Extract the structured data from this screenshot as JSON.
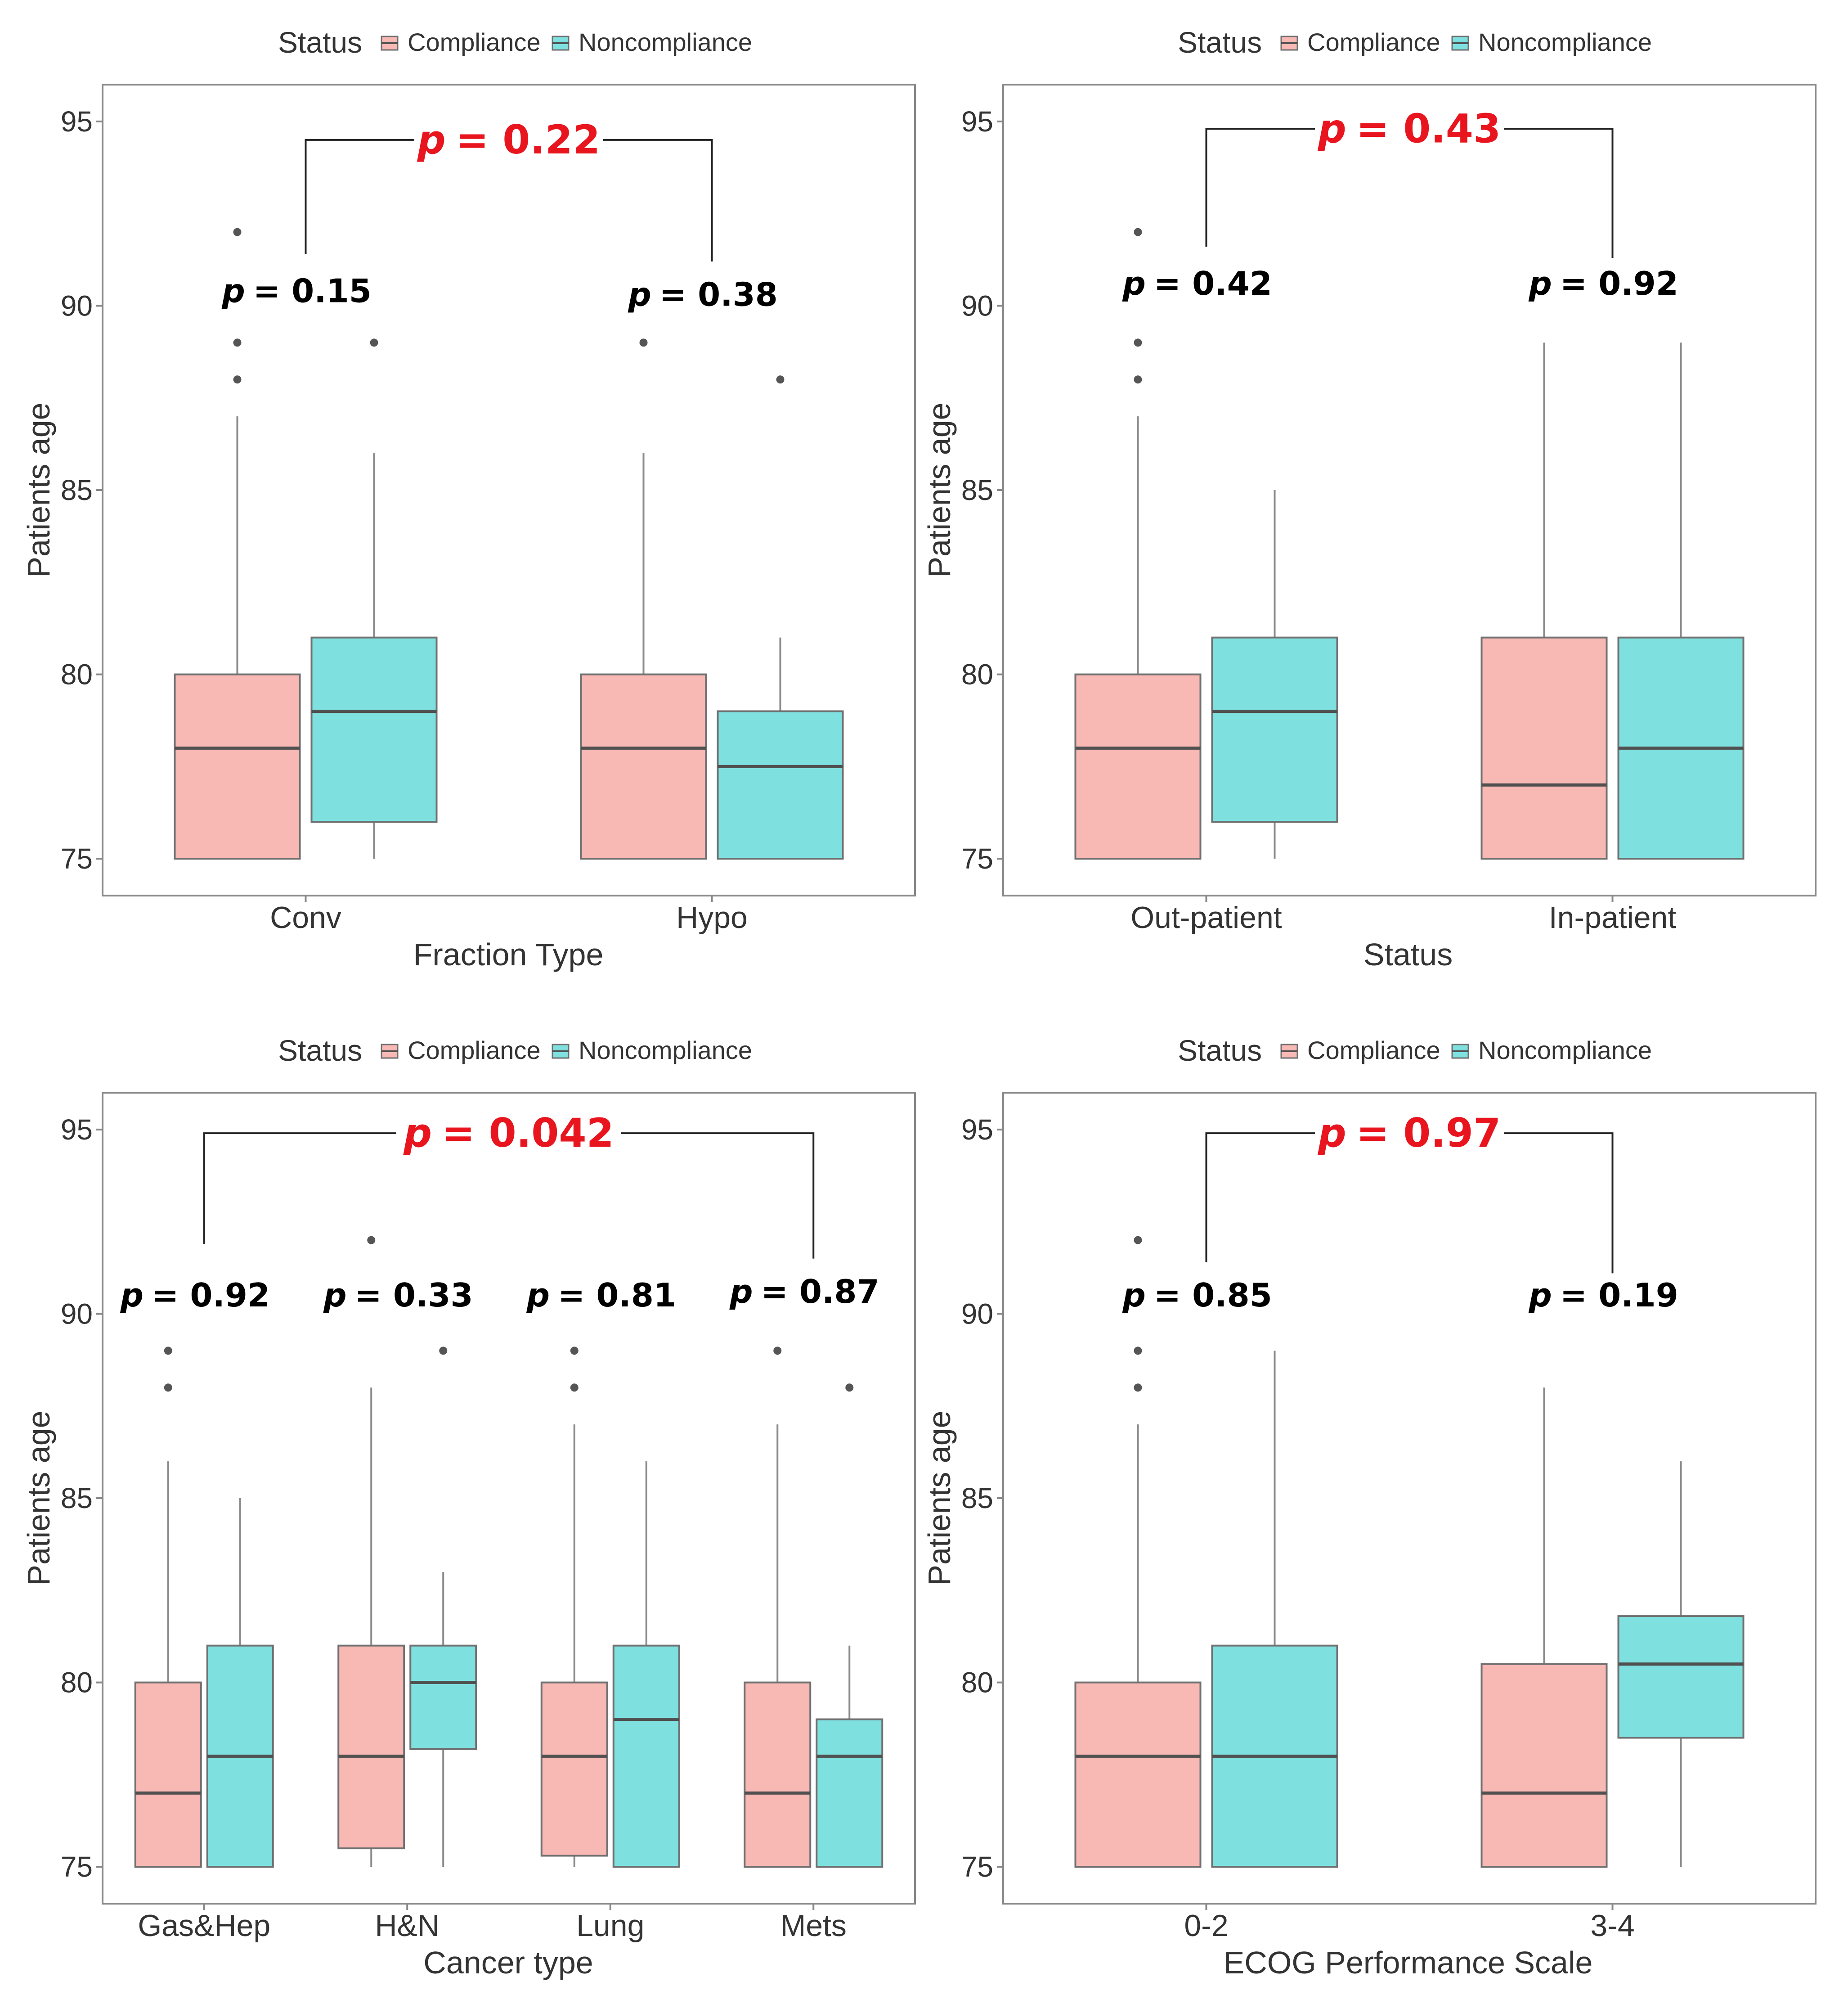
{
  "colors": {
    "compliance": "#F8B8B4",
    "noncompliance": "#7FE0E0",
    "box_stroke": "#707070",
    "median": "#505050",
    "whisker": "#8a8a8a",
    "outlier": "#555555",
    "panel_border": "#888888",
    "p_overall": "#E8141E",
    "p_group": "#000000",
    "bracket": "#222222",
    "text": "#333333"
  },
  "chart_data": [
    {
      "type": "boxplot",
      "legend": {
        "title": "Status",
        "entries": [
          "Compliance",
          "Noncompliance"
        ],
        "placement": "top"
      },
      "xlabel": "Fraction Type",
      "ylabel": "Patients age",
      "ylim": [
        74,
        96
      ],
      "yticks": [
        "75",
        "80",
        "85",
        "90",
        "95"
      ],
      "categories": [
        "Conv",
        "Hypo"
      ],
      "series": [
        {
          "name": "Compliance",
          "boxes": [
            {
              "q1": 75,
              "median": 78,
              "q3": 80,
              "whisker_low": 75,
              "whisker_high": 87,
              "outliers": [
                88,
                89,
                92
              ]
            },
            {
              "q1": 75,
              "median": 78,
              "q3": 80,
              "whisker_low": 75,
              "whisker_high": 86,
              "outliers": [
                89
              ]
            }
          ]
        },
        {
          "name": "Noncompliance",
          "boxes": [
            {
              "q1": 76,
              "median": 79,
              "q3": 81,
              "whisker_low": 75,
              "whisker_high": 86,
              "outliers": [
                89
              ]
            },
            {
              "q1": 75,
              "median": 77.5,
              "q3": 79,
              "whisker_low": 75,
              "whisker_high": 81,
              "outliers": [
                88
              ]
            }
          ]
        }
      ],
      "group_p": [
        {
          "prefix": "p",
          "text": "= 0.15",
          "y": 90.1
        },
        {
          "prefix": "p",
          "text": "= 0.38",
          "y": 90.0
        }
      ],
      "overall_p": {
        "prefix": "p",
        "text": "= 0.22",
        "from": 0,
        "to": 1,
        "bracket_y": 94.5,
        "drop_to": [
          91.4,
          91.2
        ]
      }
    },
    {
      "type": "boxplot",
      "legend": {
        "title": "Status",
        "entries": [
          "Compliance",
          "Noncompliance"
        ],
        "placement": "top"
      },
      "xlabel": "Status",
      "ylabel": "Patients age",
      "ylim": [
        74,
        96
      ],
      "yticks": [
        "75",
        "80",
        "85",
        "90",
        "95"
      ],
      "categories": [
        "Out-patient",
        "In-patient"
      ],
      "series": [
        {
          "name": "Compliance",
          "boxes": [
            {
              "q1": 75,
              "median": 78,
              "q3": 80,
              "whisker_low": 75,
              "whisker_high": 87,
              "outliers": [
                88,
                89,
                92
              ]
            },
            {
              "q1": 75,
              "median": 77,
              "q3": 81,
              "whisker_low": 75,
              "whisker_high": 89,
              "outliers": []
            }
          ]
        },
        {
          "name": "Noncompliance",
          "boxes": [
            {
              "q1": 76,
              "median": 79,
              "q3": 81,
              "whisker_low": 75,
              "whisker_high": 85,
              "outliers": []
            },
            {
              "q1": 75,
              "median": 78,
              "q3": 81,
              "whisker_low": 75,
              "whisker_high": 89,
              "outliers": []
            }
          ]
        }
      ],
      "group_p": [
        {
          "prefix": "p",
          "text": "= 0.42",
          "y": 90.3
        },
        {
          "prefix": "p",
          "text": "= 0.92",
          "y": 90.3
        }
      ],
      "overall_p": {
        "prefix": "p",
        "text": "= 0.43",
        "from": 0,
        "to": 1,
        "bracket_y": 94.8,
        "drop_to": [
          91.6,
          91.3
        ]
      }
    },
    {
      "type": "boxplot",
      "legend": {
        "title": "Status",
        "entries": [
          "Compliance",
          "Noncompliance"
        ],
        "placement": "top"
      },
      "xlabel": "Cancer type",
      "ylabel": "Patients age",
      "ylim": [
        74,
        96
      ],
      "yticks": [
        "75",
        "80",
        "85",
        "90",
        "95"
      ],
      "categories": [
        "Gas&Hep",
        "H&N",
        "Lung",
        "Mets"
      ],
      "series": [
        {
          "name": "Compliance",
          "boxes": [
            {
              "q1": 75,
              "median": 77,
              "q3": 80,
              "whisker_low": 75,
              "whisker_high": 86,
              "outliers": [
                88,
                89
              ]
            },
            {
              "q1": 75.5,
              "median": 78,
              "q3": 81,
              "whisker_low": 75,
              "whisker_high": 88,
              "outliers": [
                92
              ]
            },
            {
              "q1": 75.3,
              "median": 78,
              "q3": 80,
              "whisker_low": 75,
              "whisker_high": 87,
              "outliers": [
                88,
                89
              ]
            },
            {
              "q1": 75,
              "median": 77,
              "q3": 80,
              "whisker_low": 75,
              "whisker_high": 87,
              "outliers": [
                89
              ]
            }
          ]
        },
        {
          "name": "Noncompliance",
          "boxes": [
            {
              "q1": 75,
              "median": 78,
              "q3": 81,
              "whisker_low": 75,
              "whisker_high": 85,
              "outliers": []
            },
            {
              "q1": 78.2,
              "median": 80,
              "q3": 81,
              "whisker_low": 75,
              "whisker_high": 83,
              "outliers": [
                89
              ]
            },
            {
              "q1": 75,
              "median": 79,
              "q3": 81,
              "whisker_low": 75,
              "whisker_high": 86,
              "outliers": []
            },
            {
              "q1": 75,
              "median": 78,
              "q3": 79,
              "whisker_low": 75,
              "whisker_high": 81,
              "outliers": [
                88
              ]
            }
          ]
        }
      ],
      "group_p": [
        {
          "prefix": "p",
          "text": "= 0.92",
          "y": 90.2
        },
        {
          "prefix": "p",
          "text": "= 0.33",
          "y": 90.2
        },
        {
          "prefix": "p",
          "text": "= 0.81",
          "y": 90.2
        },
        {
          "prefix": "p",
          "text": "= 0.87",
          "y": 90.3
        }
      ],
      "overall_p": {
        "prefix": "p",
        "text": "= 0.042",
        "from": 0,
        "to": 3,
        "bracket_y": 94.9,
        "drop_to": [
          91.9,
          91.5
        ]
      }
    },
    {
      "type": "boxplot",
      "legend": {
        "title": "Status",
        "entries": [
          "Compliance",
          "Noncompliance"
        ],
        "placement": "top"
      },
      "xlabel": "ECOG Performance Scale",
      "ylabel": "Patients age",
      "ylim": [
        74,
        96
      ],
      "yticks": [
        "75",
        "80",
        "85",
        "90",
        "95"
      ],
      "categories": [
        "0-2",
        "3-4"
      ],
      "series": [
        {
          "name": "Compliance",
          "boxes": [
            {
              "q1": 75,
              "median": 78,
              "q3": 80,
              "whisker_low": 75,
              "whisker_high": 87,
              "outliers": [
                88,
                89,
                92
              ]
            },
            {
              "q1": 75,
              "median": 77,
              "q3": 80.5,
              "whisker_low": 75,
              "whisker_high": 88,
              "outliers": []
            }
          ]
        },
        {
          "name": "Noncompliance",
          "boxes": [
            {
              "q1": 75,
              "median": 78,
              "q3": 81,
              "whisker_low": 75,
              "whisker_high": 89,
              "outliers": []
            },
            {
              "q1": 78.5,
              "median": 80.5,
              "q3": 81.8,
              "whisker_low": 75,
              "whisker_high": 86,
              "outliers": []
            }
          ]
        }
      ],
      "group_p": [
        {
          "prefix": "p",
          "text": "= 0.85",
          "y": 90.2
        },
        {
          "prefix": "p",
          "text": "= 0.19",
          "y": 90.2
        }
      ],
      "overall_p": {
        "prefix": "p",
        "text": "= 0.97",
        "from": 0,
        "to": 1,
        "bracket_y": 94.9,
        "drop_to": [
          91.4,
          91.1
        ]
      }
    }
  ]
}
